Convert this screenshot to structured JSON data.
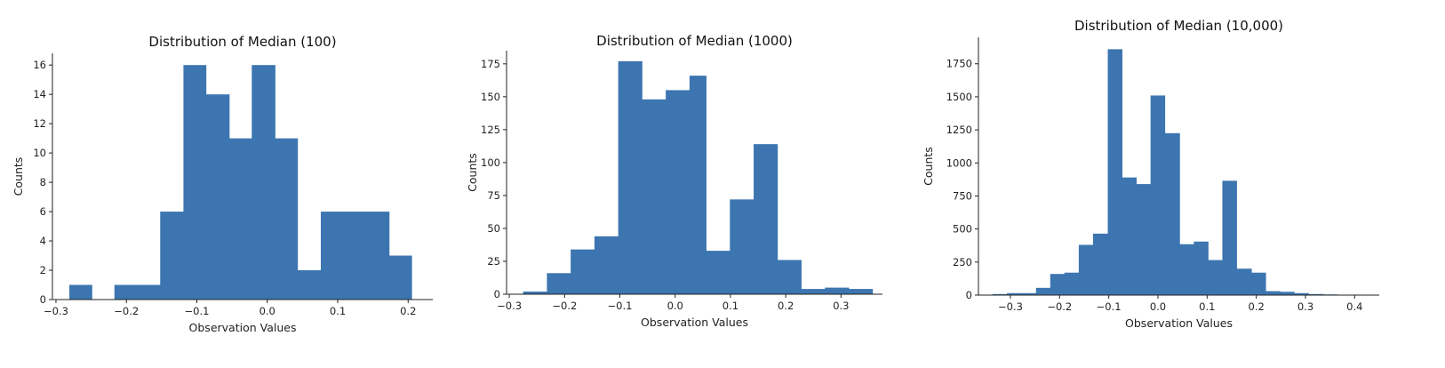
{
  "chart_data": [
    {
      "type": "bar",
      "title": "Distribution of Median (100)",
      "xlabel": "Observation Values",
      "ylabel": "Counts",
      "xlim": [
        -0.305,
        0.235
      ],
      "ylim": [
        0,
        16.8
      ],
      "xticks": [
        -0.3,
        -0.2,
        -0.1,
        0.0,
        0.1,
        0.2
      ],
      "xtick_labels": [
        "−0.3",
        "−0.2",
        "−0.1",
        "0.0",
        "0.1",
        "0.2"
      ],
      "yticks": [
        0,
        2,
        4,
        6,
        8,
        10,
        12,
        14,
        16
      ],
      "ytick_labels": [
        "0",
        "2",
        "4",
        "6",
        "8",
        "10",
        "12",
        "14",
        "16"
      ],
      "bins": [
        {
          "x0": -0.281,
          "x1": -0.249,
          "count": 1
        },
        {
          "x0": -0.249,
          "x1": -0.217,
          "count": 0
        },
        {
          "x0": -0.217,
          "x1": -0.184,
          "count": 1
        },
        {
          "x0": -0.184,
          "x1": -0.152,
          "count": 1
        },
        {
          "x0": -0.152,
          "x1": -0.119,
          "count": 6
        },
        {
          "x0": -0.119,
          "x1": -0.087,
          "count": 16
        },
        {
          "x0": -0.087,
          "x1": -0.054,
          "count": 14
        },
        {
          "x0": -0.054,
          "x1": -0.022,
          "count": 11
        },
        {
          "x0": -0.022,
          "x1": 0.011,
          "count": 16
        },
        {
          "x0": 0.011,
          "x1": 0.043,
          "count": 11
        },
        {
          "x0": 0.043,
          "x1": 0.076,
          "count": 2
        },
        {
          "x0": 0.076,
          "x1": 0.108,
          "count": 6
        },
        {
          "x0": 0.108,
          "x1": 0.14,
          "count": 6
        },
        {
          "x0": 0.14,
          "x1": 0.173,
          "count": 6
        },
        {
          "x0": 0.173,
          "x1": 0.205,
          "count": 3
        }
      ],
      "grid": false,
      "color": "#3c75b0"
    },
    {
      "type": "bar",
      "title": "Distribution of Median (1000)",
      "xlabel": "Observation Values",
      "ylabel": "Counts",
      "xlim": [
        -0.305,
        0.375
      ],
      "ylim": [
        0,
        185
      ],
      "xticks": [
        -0.3,
        -0.2,
        -0.1,
        0.0,
        0.1,
        0.2,
        0.3
      ],
      "xtick_labels": [
        "−0.3",
        "−0.2",
        "−0.1",
        "0.0",
        "0.1",
        "0.2",
        "0.3"
      ],
      "yticks": [
        0,
        25,
        50,
        75,
        100,
        125,
        150,
        175
      ],
      "ytick_labels": [
        "0",
        "25",
        "50",
        "75",
        "100",
        "125",
        "150",
        "175"
      ],
      "bins": [
        {
          "x0": -0.275,
          "x1": -0.232,
          "count": 2
        },
        {
          "x0": -0.232,
          "x1": -0.189,
          "count": 16
        },
        {
          "x0": -0.189,
          "x1": -0.146,
          "count": 34
        },
        {
          "x0": -0.146,
          "x1": -0.103,
          "count": 44
        },
        {
          "x0": -0.103,
          "x1": -0.06,
          "count": 177
        },
        {
          "x0": -0.06,
          "x1": -0.017,
          "count": 148
        },
        {
          "x0": -0.017,
          "x1": 0.026,
          "count": 155
        },
        {
          "x0": 0.026,
          "x1": 0.056,
          "count": 166
        },
        {
          "x0": 0.056,
          "x1": 0.099,
          "count": 33
        },
        {
          "x0": 0.099,
          "x1": 0.142,
          "count": 72
        },
        {
          "x0": 0.142,
          "x1": 0.185,
          "count": 114
        },
        {
          "x0": 0.185,
          "x1": 0.228,
          "count": 26
        },
        {
          "x0": 0.228,
          "x1": 0.271,
          "count": 4
        },
        {
          "x0": 0.271,
          "x1": 0.314,
          "count": 5
        },
        {
          "x0": 0.314,
          "x1": 0.357,
          "count": 4
        }
      ],
      "grid": false,
      "color": "#3c75b0"
    },
    {
      "type": "bar",
      "title": "Distribution of Median (10,000)",
      "xlabel": "Observation Values",
      "ylabel": "Counts",
      "xlim": [
        -0.365,
        0.45
      ],
      "ylim": [
        0,
        1950
      ],
      "xticks": [
        -0.3,
        -0.2,
        -0.1,
        0.0,
        0.1,
        0.2,
        0.3,
        0.4
      ],
      "xtick_labels": [
        "−0.3",
        "−0.2",
        "−0.1",
        "0.0",
        "0.1",
        "0.2",
        "0.3",
        "0.4"
      ],
      "yticks": [
        0,
        250,
        500,
        750,
        1000,
        1250,
        1500,
        1750
      ],
      "ytick_labels": [
        "0",
        "250",
        "500",
        "750",
        "1000",
        "1250",
        "1500",
        "1750"
      ],
      "bins": [
        {
          "x0": -0.336,
          "x1": -0.307,
          "count": 8
        },
        {
          "x0": -0.307,
          "x1": -0.277,
          "count": 15
        },
        {
          "x0": -0.277,
          "x1": -0.248,
          "count": 15
        },
        {
          "x0": -0.248,
          "x1": -0.219,
          "count": 55
        },
        {
          "x0": -0.219,
          "x1": -0.19,
          "count": 160
        },
        {
          "x0": -0.19,
          "x1": -0.161,
          "count": 170
        },
        {
          "x0": -0.161,
          "x1": -0.132,
          "count": 380
        },
        {
          "x0": -0.132,
          "x1": -0.102,
          "count": 465
        },
        {
          "x0": -0.102,
          "x1": -0.073,
          "count": 1860
        },
        {
          "x0": -0.073,
          "x1": -0.044,
          "count": 890
        },
        {
          "x0": -0.044,
          "x1": -0.015,
          "count": 840
        },
        {
          "x0": -0.015,
          "x1": 0.014,
          "count": 1510
        },
        {
          "x0": 0.014,
          "x1": 0.044,
          "count": 1225
        },
        {
          "x0": 0.044,
          "x1": 0.073,
          "count": 385
        },
        {
          "x0": 0.073,
          "x1": 0.102,
          "count": 405
        },
        {
          "x0": 0.102,
          "x1": 0.131,
          "count": 265
        },
        {
          "x0": 0.131,
          "x1": 0.16,
          "count": 865
        },
        {
          "x0": 0.16,
          "x1": 0.19,
          "count": 200
        },
        {
          "x0": 0.19,
          "x1": 0.219,
          "count": 170
        },
        {
          "x0": 0.219,
          "x1": 0.248,
          "count": 30
        },
        {
          "x0": 0.248,
          "x1": 0.277,
          "count": 25
        },
        {
          "x0": 0.277,
          "x1": 0.306,
          "count": 15
        },
        {
          "x0": 0.306,
          "x1": 0.336,
          "count": 8
        },
        {
          "x0": 0.336,
          "x1": 0.365,
          "count": 5
        },
        {
          "x0": 0.365,
          "x1": 0.394,
          "count": 3
        }
      ],
      "grid": false,
      "color": "#3c75b0"
    }
  ]
}
